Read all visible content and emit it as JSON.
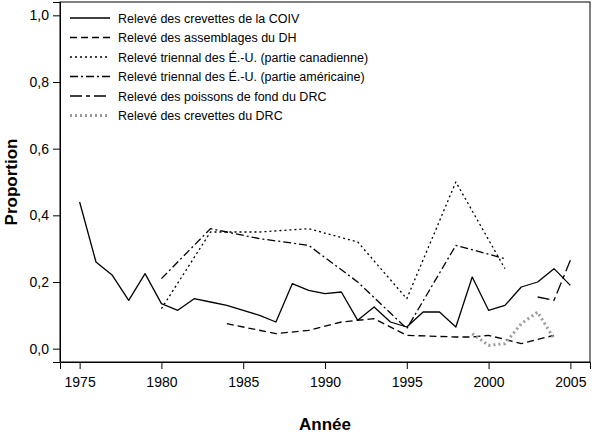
{
  "chart_data": {
    "type": "line",
    "x_label": "Année",
    "y_label": "Proportion",
    "xlim": [
      1973.8,
      2006.2
    ],
    "ylim": [
      -0.04,
      1.04
    ],
    "xticks": [
      1975,
      1980,
      1985,
      1990,
      1995,
      2000,
      2005
    ],
    "yticks": [
      {
        "value": 0,
        "label": "0,0"
      },
      {
        "value": 0.2,
        "label": "0,2"
      },
      {
        "value": 0.4,
        "label": "0,4"
      },
      {
        "value": 0.6,
        "label": "0,6"
      },
      {
        "value": 0.8,
        "label": "0,8"
      },
      {
        "value": 1,
        "label": "1,0"
      }
    ],
    "grid": false,
    "legend": "upper left",
    "series": [
      {
        "name": "Relevé des crevettes de la COIV",
        "color": "#000000",
        "line_style": "solid",
        "x": [
          1975,
          1976,
          1977,
          1978,
          1979,
          1980,
          1981,
          1982,
          1983,
          1984,
          1985,
          1986,
          1987,
          1988,
          1989,
          1990,
          1991,
          1992,
          1993,
          1994,
          1995,
          1996,
          1997,
          1998,
          1999,
          2000,
          2001,
          2002,
          2003,
          2004,
          2005
        ],
        "values": [
          0.44,
          0.26,
          0.22,
          0.145,
          0.225,
          0.135,
          0.115,
          0.15,
          0.14,
          0.13,
          0.115,
          0.1,
          0.08,
          0.195,
          0.175,
          0.165,
          0.17,
          0.085,
          0.125,
          0.08,
          0.065,
          0.11,
          0.11,
          0.065,
          0.215,
          0.115,
          0.13,
          0.185,
          0.2,
          0.24,
          0.19
        ]
      },
      {
        "name": "Relevé des assemblages du DH",
        "color": "#000000",
        "line_style": "dashed",
        "x": [
          1984,
          1987,
          1989,
          1991,
          1993,
          1995,
          1998,
          1999,
          2000,
          2002,
          2004
        ],
        "values": [
          0.075,
          0.045,
          0.055,
          0.08,
          0.09,
          0.04,
          0.035,
          0.035,
          0.04,
          0.015,
          0.04
        ]
      },
      {
        "name": "Relevé triennal des É.-U. (partie canadienne)",
        "color": "#000000",
        "line_style": "dotted",
        "x": [
          1980,
          1983,
          1986,
          1989,
          1992,
          1995,
          1998,
          2001
        ],
        "values": [
          0.12,
          0.35,
          0.35,
          0.36,
          0.32,
          0.15,
          0.5,
          0.24
        ]
      },
      {
        "name": "Relevé triennal des É.-U. (partie américaine)",
        "color": "#000000",
        "line_style": "dashdot",
        "x": [
          1980,
          1983,
          1986,
          1989,
          1992,
          1995,
          1998,
          2001
        ],
        "values": [
          0.21,
          0.36,
          0.33,
          0.31,
          0.2,
          0.06,
          0.31,
          0.27
        ]
      },
      {
        "name": "Relevé des poissons de fond du DRC",
        "color": "#000000",
        "line_style": "longdash",
        "x": [
          2003,
          2004,
          2005
        ],
        "values": [
          0.155,
          0.145,
          0.265
        ]
      },
      {
        "name": "Relevé des crevettes du DRC",
        "color": "#9a9a9a",
        "line_style": "dotted",
        "x": [
          1999,
          2000,
          2001,
          2002,
          2003,
          2004
        ],
        "values": [
          0.045,
          0.01,
          0.015,
          0.075,
          0.11,
          0.03
        ]
      }
    ]
  }
}
